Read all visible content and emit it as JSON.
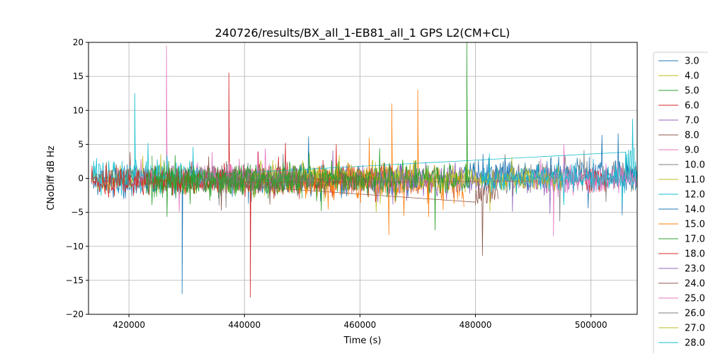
{
  "chart_data": {
    "type": "line",
    "title": "240726/results/BX_all_1-EB81_all_1 GPS L2(CM+CL)",
    "xlabel": "Time (s)",
    "ylabel": "CNoDiff dB Hz",
    "xlim": [
      413000,
      508000
    ],
    "ylim": [
      -20,
      20
    ],
    "xticks": [
      420000,
      440000,
      460000,
      480000,
      500000
    ],
    "xtick_labels": [
      "420000",
      "440000",
      "460000",
      "480000",
      "500000"
    ],
    "yticks": [
      -20,
      -15,
      -10,
      -5,
      0,
      5,
      10,
      15,
      20
    ],
    "ytick_labels": [
      "−20",
      "−15",
      "−10",
      "−5",
      "0",
      "5",
      "10",
      "15",
      "20"
    ],
    "grid": true,
    "legend_position": "outside-right",
    "series": [
      {
        "name": "3.0",
        "color": "#1f77b4",
        "x": [
          413500,
          470000
        ],
        "amplitude": 1.5,
        "spikes": [
          [
            429200,
            -17
          ]
        ]
      },
      {
        "name": "4.0",
        "color": "#bcbd22",
        "x": [
          413500,
          470000
        ],
        "amplitude": 1.2,
        "spikes": []
      },
      {
        "name": "5.0",
        "color": "#2ca02c",
        "x": [
          423000,
          479000
        ],
        "amplitude": 1.6,
        "spikes": [
          [
            478500,
            20
          ]
        ]
      },
      {
        "name": "6.0",
        "color": "#d62728",
        "x": [
          436000,
          466000
        ],
        "amplitude": 1.5,
        "spikes": [
          [
            437300,
            15.5
          ],
          [
            441000,
            -17.5
          ]
        ]
      },
      {
        "name": "7.0",
        "color": "#9467bd",
        "x": [
          455000,
          495000
        ],
        "amplitude": 1.4,
        "spikes": []
      },
      {
        "name": "8.0",
        "color": "#8c564b",
        "x": [
          413500,
          437000
        ],
        "amplitude": 1.3,
        "spikes": [
          [
            480000,
            -10
          ]
        ]
      },
      {
        "name": "9.0",
        "color": "#e377c2",
        "x": [
          421000,
          446000
        ],
        "amplitude": 1.5,
        "spikes": [
          [
            426500,
            19.5
          ]
        ]
      },
      {
        "name": "10.0",
        "color": "#7f7f7f",
        "x": [
          483000,
          508000
        ],
        "amplitude": 1.5,
        "spikes": []
      },
      {
        "name": "11.0",
        "color": "#bcbd22",
        "x": [
          440000,
          470000
        ],
        "amplitude": 1.4,
        "spikes": []
      },
      {
        "name": "12.0",
        "color": "#17becf",
        "x": [
          413500,
          433000
        ],
        "amplitude": 1.6,
        "spikes": [
          [
            421000,
            12.5
          ],
          [
            506000,
            11
          ]
        ]
      },
      {
        "name": "14.0",
        "color": "#1f77b4",
        "x": [
          478000,
          508000
        ],
        "amplitude": 1.6,
        "spikes": []
      },
      {
        "name": "15.0",
        "color": "#ff7f0e",
        "x": [
          447000,
          478000
        ],
        "amplitude": 1.8,
        "spikes": [
          [
            465500,
            11
          ],
          [
            470000,
            13
          ]
        ]
      },
      {
        "name": "17.0",
        "color": "#2ca02c",
        "x": [
          424000,
          450000
        ],
        "amplitude": 1.5,
        "spikes": []
      },
      {
        "name": "18.0",
        "color": "#d62728",
        "x": [
          413500,
          437000
        ],
        "amplitude": 1.3,
        "spikes": [
          [
            499000,
            -1
          ]
        ]
      },
      {
        "name": "23.0",
        "color": "#9467bd",
        "x": [
          462000,
          478000
        ],
        "amplitude": 1.4,
        "spikes": []
      },
      {
        "name": "24.0",
        "color": "#8c564b",
        "x": [
          435000,
          462000
        ],
        "amplitude": 1.4,
        "spikes": []
      },
      {
        "name": "25.0",
        "color": "#e377c2",
        "x": [
          490000,
          508000
        ],
        "amplitude": 1.5,
        "spikes": [
          [
            493500,
            -8.5
          ]
        ]
      },
      {
        "name": "26.0",
        "color": "#7f7f7f",
        "x": [
          432000,
          452000
        ],
        "amplitude": 1.3,
        "spikes": []
      },
      {
        "name": "27.0",
        "color": "#bcbd22",
        "x": [
          470000,
          495000
        ],
        "amplitude": 1.2,
        "spikes": []
      },
      {
        "name": "28.0",
        "color": "#17becf",
        "x": [
          481000,
          508000
        ],
        "amplitude": 1.3,
        "spikes": []
      }
    ],
    "plot_order": [
      0,
      1,
      3,
      4,
      5,
      6,
      7,
      8,
      9,
      10,
      11,
      12,
      13,
      14,
      15,
      16,
      17,
      18,
      19,
      2
    ]
  }
}
